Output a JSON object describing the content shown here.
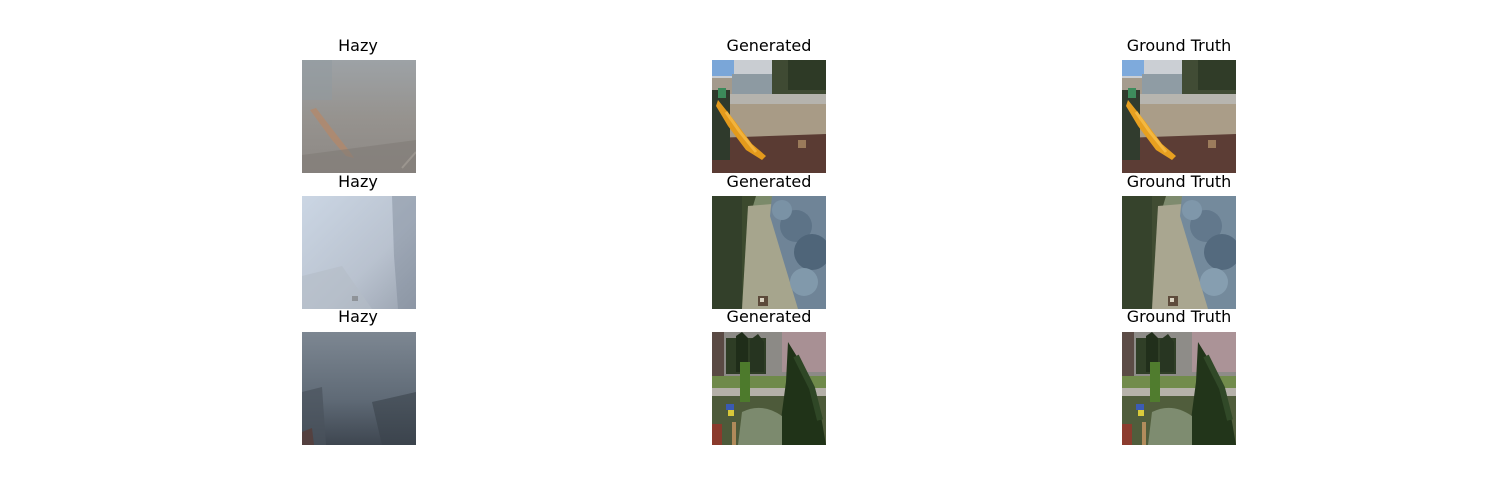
{
  "grid": {
    "rows": [
      {
        "hazy": {
          "title": "Hazy"
        },
        "generated": {
          "title": "Generated"
        },
        "truth": {
          "title": "Ground Truth"
        }
      },
      {
        "hazy": {
          "title": "Hazy"
        },
        "generated": {
          "title": "Generated"
        },
        "truth": {
          "title": "Ground Truth"
        }
      },
      {
        "hazy": {
          "title": "Hazy"
        },
        "generated": {
          "title": "Generated"
        },
        "truth": {
          "title": "Ground Truth"
        }
      }
    ]
  }
}
